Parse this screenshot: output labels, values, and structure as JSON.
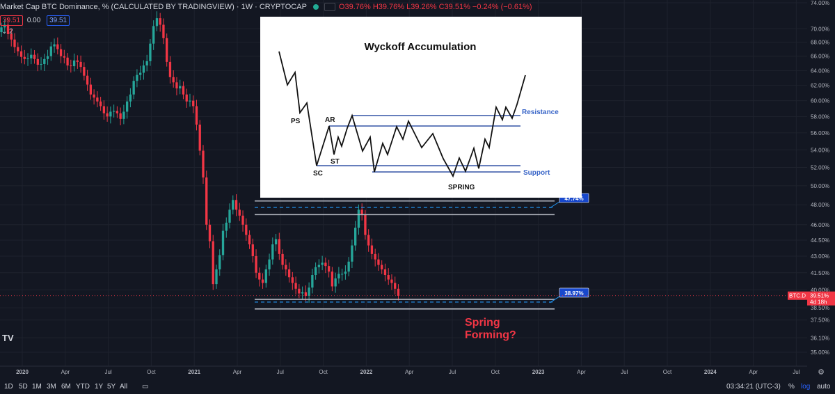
{
  "header": {
    "title": "Market Cap BTC Dominance, % (CALCULATED BY TRADINGVIEW) · 1W · CRYPTOCAP",
    "ohlc": "O39.76% H39.76% L39.26% C39.51% −0.24% (−0.61%)",
    "sell_value": "39.51",
    "spread": "0.00",
    "buy_value": "39.51",
    "layers": "2"
  },
  "colors": {
    "background": "#131722",
    "up": "#26a69a",
    "down": "#f23645",
    "level": "#2196f3",
    "support_line": "#b2b5be",
    "annotation_red": "#f23645",
    "inset_line": "#3353a5"
  },
  "timeframes": [
    "1D",
    "5D",
    "1M",
    "3M",
    "6M",
    "YTD",
    "1Y",
    "5Y",
    "All"
  ],
  "status": {
    "clock": "03:34:21 (UTC-3)",
    "pct": "%",
    "log": "log",
    "auto": "auto"
  },
  "tv_logo": "TV",
  "chart_data": {
    "type": "candlestick",
    "title": "Market Cap BTC Dominance, %",
    "interval": "1W",
    "scale": "log",
    "ylim": [
      35.0,
      74.0
    ],
    "y_ticks": [
      "74.00%",
      "70.00%",
      "68.00%",
      "66.00%",
      "64.00%",
      "62.00%",
      "60.00%",
      "58.00%",
      "56.00%",
      "54.00%",
      "52.00%",
      "50.00%",
      "48.00%",
      "46.00%",
      "44.50%",
      "43.00%",
      "41.50%",
      "40.00%",
      "38.50%",
      "37.50%",
      "36.10%",
      "35.00%"
    ],
    "x_ticks": [
      "2020",
      "Apr",
      "Jul",
      "Oct",
      "2021",
      "Apr",
      "Jul",
      "Oct",
      "2022",
      "Apr",
      "Jul",
      "Oct",
      "2023",
      "Apr",
      "Jul",
      "Oct",
      "2024",
      "Apr",
      "Jul"
    ],
    "current_label": "BTC.D",
    "current_value": "39.51%",
    "countdown": "4d 18h",
    "levels": [
      {
        "label": "47.74%",
        "value": 47.74
      },
      {
        "label": "38.97%",
        "value": 38.97
      }
    ],
    "range_lines": [
      48.4,
      47.0,
      39.2,
      38.4
    ],
    "annotation": [
      "Spring",
      "Forming?"
    ],
    "closes": [
      70.2,
      70.6,
      69.2,
      68.4,
      67.3,
      66.7,
      65.9,
      65.6,
      65.7,
      66.2,
      65.6,
      64.8,
      64.9,
      65.6,
      66.0,
      67.4,
      67.7,
      67.0,
      66.0,
      65.8,
      64.7,
      64.6,
      65.4,
      65.2,
      64.5,
      63.3,
      62.1,
      60.8,
      60.4,
      59.9,
      59.3,
      58.4,
      58.0,
      58.6,
      58.7,
      58.4,
      57.7,
      58.6,
      59.9,
      60.8,
      62.6,
      63.4,
      63.7,
      64.7,
      65.3,
      67.8,
      70.4,
      71.6,
      70.6,
      68.6,
      65.2,
      63.1,
      62.4,
      61.6,
      61.9,
      60.8,
      59.9,
      60.0,
      59.3,
      57.0,
      53.9,
      50.9,
      46.0,
      44.4,
      40.5,
      41.8,
      43.1,
      45.4,
      46.2,
      47.5,
      48.5,
      47.5,
      46.9,
      46.0,
      45.0,
      44.1,
      43.0,
      41.5,
      40.9,
      40.6,
      41.8,
      42.7,
      44.1,
      44.6,
      43.2,
      42.2,
      41.8,
      41.1,
      40.6,
      40.1,
      39.7,
      39.8,
      39.5,
      40.2,
      41.3,
      42.0,
      42.2,
      42.4,
      42.1,
      41.6,
      40.3,
      41.0,
      41.4,
      41.4,
      41.6,
      42.5,
      44.0,
      45.7,
      47.5,
      47.0,
      45.0,
      44.0,
      43.2,
      42.7,
      42.2,
      41.8,
      41.3,
      40.9,
      40.6,
      40.1,
      39.5
    ]
  },
  "inset": {
    "title": "Wyckoff Accumulation",
    "labels": {
      "ps": "PS",
      "sc": "SC",
      "ar": "AR",
      "st": "ST",
      "spring": "SPRING",
      "resistance": "Resistance",
      "support": "Support"
    }
  }
}
